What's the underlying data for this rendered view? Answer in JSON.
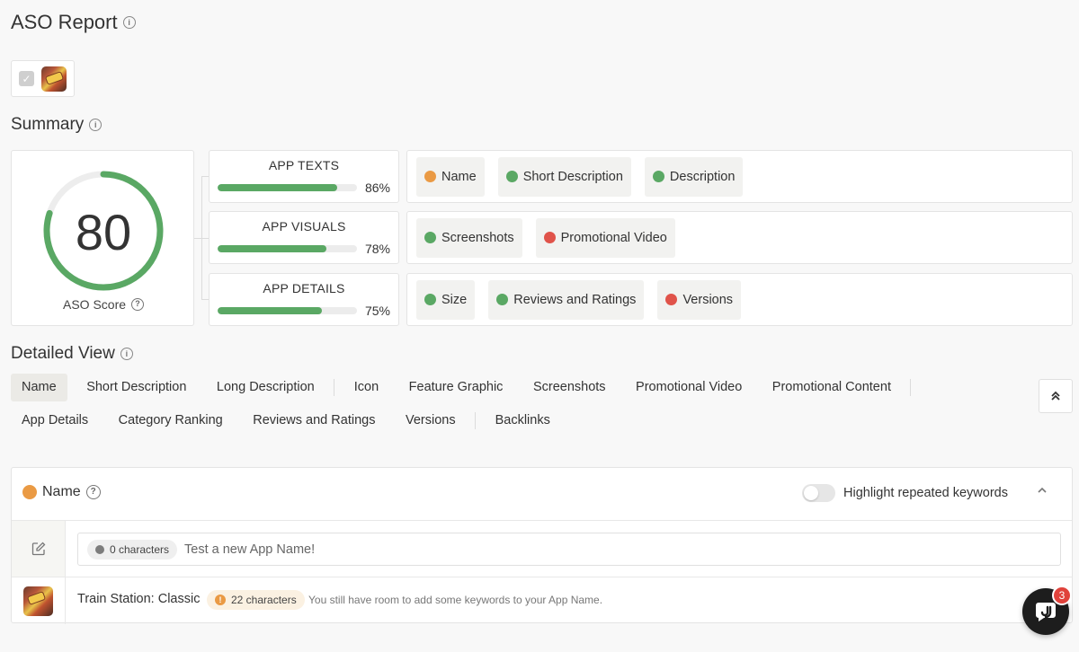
{
  "header": {
    "title": "ASO Report"
  },
  "summary": {
    "title": "Summary",
    "score": "80",
    "score_value": 0.8,
    "score_label": "ASO Score",
    "categories": [
      {
        "name": "APP TEXTS",
        "pct": "86%",
        "value": 0.86
      },
      {
        "name": "APP VISUALS",
        "pct": "78%",
        "value": 0.78
      },
      {
        "name": "APP DETAILS",
        "pct": "75%",
        "value": 0.75
      }
    ],
    "items": [
      [
        {
          "label": "Name",
          "status": "orange"
        },
        {
          "label": "Short Description",
          "status": "green"
        },
        {
          "label": "Description",
          "status": "green"
        }
      ],
      [
        {
          "label": "Screenshots",
          "status": "green"
        },
        {
          "label": "Promotional Video",
          "status": "red"
        }
      ],
      [
        {
          "label": "Size",
          "status": "green"
        },
        {
          "label": "Reviews and Ratings",
          "status": "green"
        },
        {
          "label": "Versions",
          "status": "red"
        }
      ]
    ]
  },
  "detailed": {
    "title": "Detailed View",
    "tabs_row1": [
      "Name",
      "Short Description",
      "Long Description",
      "Icon",
      "Feature Graphic",
      "Screenshots",
      "Promotional Video",
      "Promotional Content"
    ],
    "tabs_row2": [
      "App Details",
      "Category Ranking",
      "Reviews and Ratings",
      "Versions",
      "Backlinks"
    ]
  },
  "name_panel": {
    "title": "Name",
    "highlight_label": "Highlight repeated keywords",
    "test_count": "0 characters",
    "test_placeholder": "Test a new App Name!",
    "app_name": "Train Station: Classic",
    "app_count": "22 characters",
    "hint": "You still have room to add some keywords to your App Name."
  },
  "chat": {
    "badge": "3"
  },
  "colors": {
    "green": "#5aa864",
    "orange": "#ea9a44",
    "red": "#e0534a"
  }
}
